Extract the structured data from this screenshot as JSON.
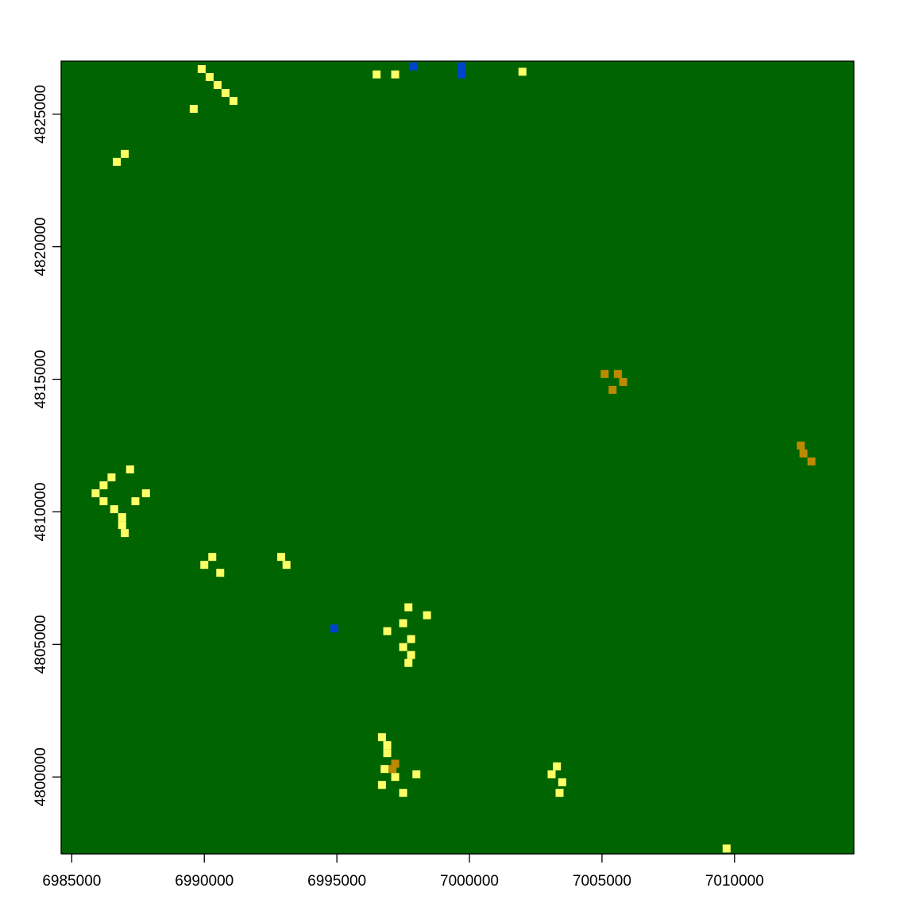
{
  "chart_data": {
    "type": "heatmap",
    "title": "",
    "xlabel": "",
    "ylabel": "",
    "xlim": [
      6984600,
      7014500
    ],
    "ylim": [
      4797100,
      4827000
    ],
    "cell_size": 300,
    "x_ticks": [
      6985000,
      6990000,
      6995000,
      7000000,
      7005000,
      7010000
    ],
    "x_tick_labels": [
      "6985000",
      "6990000",
      "6995000",
      "7000000",
      "7005000",
      "7010000"
    ],
    "y_ticks": [
      4800000,
      4805000,
      4810000,
      4815000,
      4820000,
      4825000
    ],
    "y_tick_labels": [
      "4800000",
      "4805000",
      "4810000",
      "4815000",
      "4820000",
      "4825000"
    ],
    "grid": false,
    "legend": "none",
    "classes": [
      {
        "id": "forest",
        "color": "#006400"
      },
      {
        "id": "open",
        "color": "#ffff66"
      },
      {
        "id": "shrub",
        "color": "#bb8a00"
      },
      {
        "id": "water",
        "color": "#0044cc"
      }
    ],
    "background_class": "forest",
    "patches": [
      {
        "class": "open",
        "cells": [
          [
            6989900,
            4826700
          ],
          [
            6990200,
            4826400
          ],
          [
            6990500,
            4826100
          ],
          [
            6990800,
            4825800
          ],
          [
            6991100,
            4825500
          ],
          [
            6989600,
            4825200
          ],
          [
            6987000,
            4823500
          ],
          [
            6986700,
            4823200
          ]
        ]
      },
      {
        "class": "open",
        "cells": [
          [
            6996500,
            4826500
          ],
          [
            6997200,
            4826500
          ],
          [
            7002000,
            4826600
          ]
        ]
      },
      {
        "class": "open",
        "cells": [
          [
            6987200,
            4811600
          ],
          [
            6986500,
            4811300
          ],
          [
            6986200,
            4811000
          ],
          [
            6985900,
            4810700
          ],
          [
            6987800,
            4810700
          ],
          [
            6986200,
            4810400
          ],
          [
            6987400,
            4810400
          ],
          [
            6986600,
            4810100
          ],
          [
            6986900,
            4809800
          ],
          [
            6986900,
            4809500
          ],
          [
            6987000,
            4809200
          ]
        ]
      },
      {
        "class": "open",
        "cells": [
          [
            6990300,
            4808300
          ],
          [
            6990000,
            4808000
          ],
          [
            6990600,
            4807700
          ],
          [
            6992900,
            4808300
          ],
          [
            6993100,
            4808000
          ]
        ]
      },
      {
        "class": "open",
        "cells": [
          [
            6997700,
            4806400
          ],
          [
            6998400,
            4806100
          ],
          [
            6997500,
            4805800
          ],
          [
            6996900,
            4805500
          ],
          [
            6997800,
            4805200
          ],
          [
            6997500,
            4804900
          ],
          [
            6997800,
            4804600
          ],
          [
            6997700,
            4804300
          ]
        ]
      },
      {
        "class": "open",
        "cells": [
          [
            6996700,
            4801500
          ],
          [
            6996900,
            4801200
          ],
          [
            6996900,
            4800900
          ],
          [
            6996800,
            4800300
          ],
          [
            6998000,
            4800100
          ],
          [
            6997200,
            4800000
          ],
          [
            6996700,
            4799700
          ],
          [
            6997500,
            4799400
          ],
          [
            7003300,
            4800400
          ],
          [
            7003100,
            4800100
          ],
          [
            7003500,
            4799800
          ],
          [
            7003400,
            4799400
          ],
          [
            7009700,
            4797300
          ]
        ]
      },
      {
        "class": "shrub",
        "cells": [
          [
            7005100,
            4815200
          ],
          [
            7005600,
            4815200
          ],
          [
            7005800,
            4814900
          ],
          [
            7005400,
            4814600
          ],
          [
            7012500,
            4812500
          ],
          [
            7012600,
            4812200
          ],
          [
            7012900,
            4811900
          ],
          [
            6997200,
            4800500
          ],
          [
            6997100,
            4800300
          ]
        ]
      },
      {
        "class": "water",
        "cells": [
          [
            6997900,
            4826800
          ],
          [
            6999700,
            4826800
          ],
          [
            6999700,
            4826500
          ],
          [
            6994900,
            4805600
          ]
        ]
      }
    ]
  }
}
